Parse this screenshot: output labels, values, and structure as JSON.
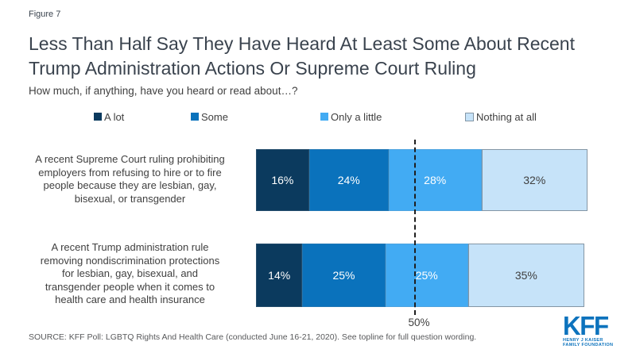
{
  "figure_label": "Figure 7",
  "title": "Less Than Half Say They Have Heard At Least Some About Recent\nTrump Administration Actions Or Supreme Court Ruling",
  "subtitle": "How much, if anything, have you heard or read about…?",
  "source": "SOURCE: KFF Poll: LGBTQ Rights And Health Care (conducted June 16-21, 2020). See topline for full question wording.",
  "logo": {
    "text": "KFF",
    "subtext_line1": "HENRY J KAISER",
    "subtext_line2": "FAMILY FOUNDATION",
    "color": "#0d73bd"
  },
  "chart_data": {
    "type": "bar",
    "orientation": "horizontal",
    "stacked": true,
    "title": "Less Than Half Say They Have Heard At Least Some About Recent Trump Administration Actions Or Supreme Court Ruling",
    "subtitle": "How much, if anything, have you heard or read about…?",
    "legend_position": "top",
    "xlim": [
      0,
      100
    ],
    "value_suffix": "%",
    "categories": [
      "A recent Supreme Court ruling prohibiting\nemployers from refusing to hire or to fire\npeople because they are lesbian, gay,\nbisexual, or transgender",
      "A recent Trump administration rule\nremoving nondiscrimination protections\nfor lesbian, gay, bisexual, and\ntransgender people when it comes to\nhealth care and health insurance"
    ],
    "series": [
      {
        "name": "A lot",
        "color": "#0b3a5e",
        "values": [
          16,
          14
        ]
      },
      {
        "name": "Some",
        "color": "#0a72bc",
        "values": [
          24,
          25
        ]
      },
      {
        "name": "Only a little",
        "color": "#42abf3",
        "values": [
          28,
          25
        ]
      },
      {
        "name": "Nothing at all",
        "color": "#c6e3f9",
        "values": [
          32,
          35
        ]
      }
    ],
    "reference_line": {
      "value": 50,
      "label": "50%"
    }
  }
}
